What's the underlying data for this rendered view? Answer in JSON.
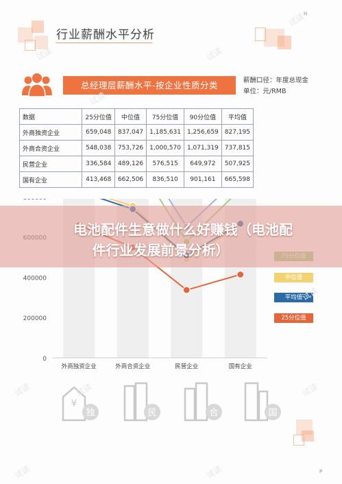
{
  "page": {
    "section_title": "行业薪酬水平分析",
    "corner_top": "H",
    "corner_bottom": "P",
    "watermark": "试读"
  },
  "banner": {
    "title": "总经理层薪酬水平-按企业性质分类",
    "note1": "薪酬口径：年度总现金",
    "note2": "单位：元/RMB"
  },
  "table": {
    "headers": [
      "数据",
      "25分位值",
      "中位值",
      "75分位值",
      "90分位值",
      "平均值"
    ],
    "rows": [
      [
        "外商独资企业",
        "659,048",
        "837,047",
        "1,185,631",
        "1,256,659",
        "827,195"
      ],
      [
        "外商合资企业",
        "548,038",
        "753,726",
        "1,000,570",
        "1,071,319",
        "737,815"
      ],
      [
        "民营企业",
        "336,584",
        "489,126",
        "576,515",
        "649,972",
        "507,925"
      ],
      [
        "国有企业",
        "413,468",
        "662,506",
        "836,510",
        "901,161",
        "665,598"
      ]
    ]
  },
  "overlay": {
    "line1": "电池配件生意做什么好赚钱（电池配",
    "line2": "件行业发展前景分析）"
  },
  "chart_data": {
    "type": "line",
    "categories": [
      "外商独资企业",
      "外商合资企业",
      "民营企业",
      "国有企业"
    ],
    "yticks": [
      0,
      200000,
      400000,
      600000,
      800000,
      1000000
    ],
    "y_tick_labels": [
      "0",
      "200000",
      "400000",
      "600000",
      "800000",
      "1000000"
    ],
    "ylim": [
      0,
      1200000
    ],
    "legend_placement": "right",
    "series": [
      {
        "name": "90分位值",
        "values": [
          1256659,
          1071319,
          649972,
          901161
        ],
        "color": "#9fb3de"
      },
      {
        "name": "75分位值",
        "values": [
          1185631,
          1000570,
          576515,
          836510
        ],
        "color": "#a6cf8a"
      },
      {
        "name": "中位值",
        "values": [
          837047,
          753726,
          489126,
          662506
        ],
        "color": "#f3d271"
      },
      {
        "name": "平均值",
        "values": [
          827195,
          737815,
          507925,
          665598
        ],
        "color": "#2a6aa6"
      },
      {
        "name": "25分位值",
        "values": [
          659048,
          548038,
          336584,
          413468
        ],
        "color": "#e6643a"
      }
    ],
    "legend": [
      {
        "name": "75分位值",
        "color": "#a6cf8a",
        "text_color": "#ffffff"
      },
      {
        "name": "中位值",
        "color": "#f3d271",
        "text_color": "#ffffff"
      },
      {
        "name": "平均值",
        "color": "#2a6aa6",
        "text_color": "#ffffff"
      },
      {
        "name": "25分位值",
        "color": "#e6643a",
        "text_color": "#ffffff"
      }
    ]
  },
  "bottom_icons": [
    {
      "name": "wholly-foreign-owned-icon",
      "char": "独",
      "symbol": "¥"
    },
    {
      "name": "joint-venture-icon",
      "char": "民"
    },
    {
      "name": "private-enterprise-icon",
      "char": "合"
    },
    {
      "name": "state-owned-icon",
      "char": "国"
    }
  ]
}
